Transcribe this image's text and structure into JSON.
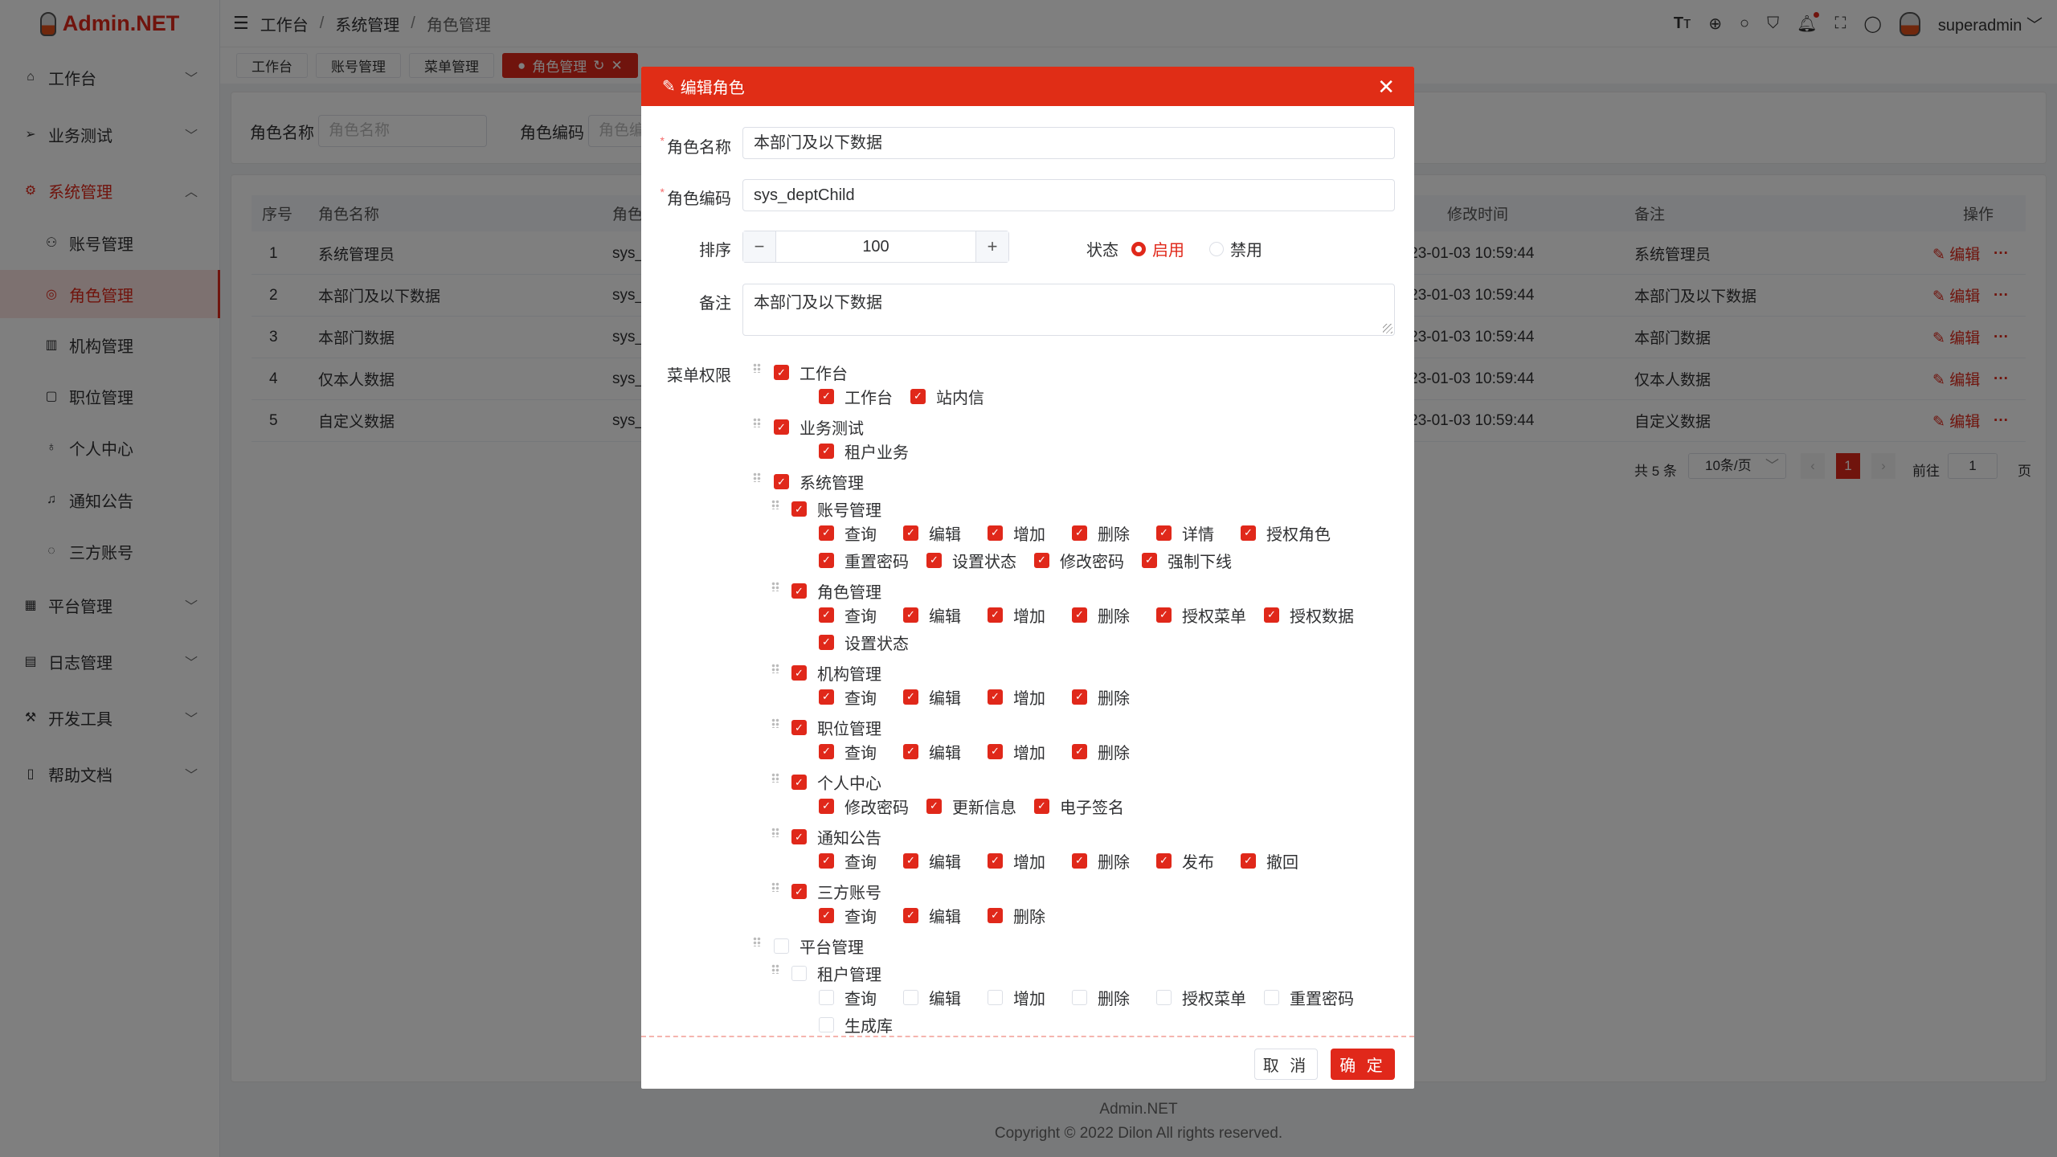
{
  "app": {
    "logo": "Admin.NET",
    "user": "superadmin"
  },
  "breadcrumb": [
    "工作台",
    "系统管理",
    "角色管理"
  ],
  "header_icons": [
    "font-size-icon",
    "language-icon",
    "search-icon",
    "skin-icon",
    "bell-icon",
    "fullscreen-icon",
    "user-icon"
  ],
  "sidebar": [
    {
      "label": "工作台",
      "icon": "home-icon",
      "sub": false,
      "chev": "﹀"
    },
    {
      "label": "业务测试",
      "icon": "send-icon",
      "sub": false,
      "chev": "﹀"
    },
    {
      "label": "系统管理",
      "icon": "gear-icon",
      "sub": false,
      "chev": "︿",
      "open": true
    },
    {
      "label": "账号管理",
      "icon": "user-icon",
      "sub": true
    },
    {
      "label": "角色管理",
      "icon": "role-icon",
      "sub": true,
      "active": true
    },
    {
      "label": "机构管理",
      "icon": "org-icon",
      "sub": true
    },
    {
      "label": "职位管理",
      "icon": "position-icon",
      "sub": true
    },
    {
      "label": "个人中心",
      "icon": "person-icon",
      "sub": true
    },
    {
      "label": "通知公告",
      "icon": "bell-icon",
      "sub": true
    },
    {
      "label": "三方账号",
      "icon": "chat-icon",
      "sub": true
    },
    {
      "label": "平台管理",
      "icon": "grid-icon",
      "sub": false,
      "chev": "﹀"
    },
    {
      "label": "日志管理",
      "icon": "log-icon",
      "sub": false,
      "chev": "﹀"
    },
    {
      "label": "开发工具",
      "icon": "tool-icon",
      "sub": false,
      "chev": "﹀"
    },
    {
      "label": "帮助文档",
      "icon": "book-icon",
      "sub": false,
      "chev": "﹀"
    }
  ],
  "tabs": [
    {
      "label": "工作台"
    },
    {
      "label": "账号管理"
    },
    {
      "label": "菜单管理"
    },
    {
      "label": "角色管理",
      "active": true
    }
  ],
  "search": {
    "name_label": "角色名称",
    "name_placeholder": "角色名称",
    "code_label": "角色编码",
    "code_placeholder": "角色编码"
  },
  "table": {
    "headers": {
      "index": "序号",
      "name": "角色名称",
      "code": "角色编码",
      "modified": "修改时间",
      "remark": "备注",
      "ops": "操作"
    },
    "rows": [
      {
        "index": "1",
        "name": "系统管理员",
        "code": "sys_",
        "modified": "2023-01-03 10:59:44",
        "remark": "系统管理员"
      },
      {
        "index": "2",
        "name": "本部门及以下数据",
        "code": "sys_",
        "modified": "2023-01-03 10:59:44",
        "remark": "本部门及以下数据"
      },
      {
        "index": "3",
        "name": "本部门数据",
        "code": "sys_",
        "modified": "2023-01-03 10:59:44",
        "remark": "本部门数据"
      },
      {
        "index": "4",
        "name": "仅本人数据",
        "code": "sys_",
        "modified": "2023-01-03 10:59:44",
        "remark": "仅本人数据"
      },
      {
        "index": "5",
        "name": "自定义数据",
        "code": "sys_",
        "modified": "2023-01-03 10:59:44",
        "remark": "自定义数据"
      }
    ],
    "edit_label": "编辑",
    "more_label": "···"
  },
  "pagination": {
    "total": "共 5 条",
    "page_size": "10条/页",
    "current": "1",
    "goto_label": "前往",
    "goto_value": "1",
    "page_suffix": "页"
  },
  "footer": {
    "brand": "Admin.NET",
    "copyright": "Copyright © 2022 Dilon All rights reserved."
  },
  "dialog": {
    "title": "编辑角色",
    "name_label": "角色名称",
    "name_value": "本部门及以下数据",
    "code_label": "角色编码",
    "code_value": "sys_deptChild",
    "sort_label": "排序",
    "sort_value": "100",
    "status_label": "状态",
    "status_options": [
      "启用",
      "禁用"
    ],
    "status_selected": "启用",
    "remark_label": "备注",
    "remark_value": "本部门及以下数据",
    "menu_label": "菜单权限",
    "cancel": "取 消",
    "confirm": "确 定",
    "accent": "#e0281a"
  },
  "menu_tree": [
    {
      "label": "工作台",
      "checked": true,
      "leaves": [
        {
          "label": "工作台",
          "checked": true
        },
        {
          "label": "站内信",
          "checked": true
        }
      ]
    },
    {
      "label": "业务测试",
      "checked": true,
      "leaves": [
        {
          "label": "租户业务",
          "checked": true
        }
      ]
    },
    {
      "label": "系统管理",
      "checked": true,
      "children": [
        {
          "label": "账号管理",
          "checked": true,
          "leaves": [
            {
              "label": "查询",
              "checked": true
            },
            {
              "label": "编辑",
              "checked": true
            },
            {
              "label": "增加",
              "checked": true
            },
            {
              "label": "删除",
              "checked": true
            },
            {
              "label": "详情",
              "checked": true
            },
            {
              "label": "授权角色",
              "checked": true
            },
            {
              "label": "重置密码",
              "checked": true
            },
            {
              "label": "设置状态",
              "checked": true
            },
            {
              "label": "修改密码",
              "checked": true
            },
            {
              "label": "强制下线",
              "checked": true
            }
          ]
        },
        {
          "label": "角色管理",
          "checked": true,
          "leaves": [
            {
              "label": "查询",
              "checked": true
            },
            {
              "label": "编辑",
              "checked": true
            },
            {
              "label": "增加",
              "checked": true
            },
            {
              "label": "删除",
              "checked": true
            },
            {
              "label": "授权菜单",
              "checked": true
            },
            {
              "label": "授权数据",
              "checked": true
            },
            {
              "label": "设置状态",
              "checked": true
            }
          ]
        },
        {
          "label": "机构管理",
          "checked": true,
          "leaves": [
            {
              "label": "查询",
              "checked": true
            },
            {
              "label": "编辑",
              "checked": true
            },
            {
              "label": "增加",
              "checked": true
            },
            {
              "label": "删除",
              "checked": true
            }
          ]
        },
        {
          "label": "职位管理",
          "checked": true,
          "leaves": [
            {
              "label": "查询",
              "checked": true
            },
            {
              "label": "编辑",
              "checked": true
            },
            {
              "label": "增加",
              "checked": true
            },
            {
              "label": "删除",
              "checked": true
            }
          ]
        },
        {
          "label": "个人中心",
          "checked": true,
          "leaves": [
            {
              "label": "修改密码",
              "checked": true
            },
            {
              "label": "更新信息",
              "checked": true
            },
            {
              "label": "电子签名",
              "checked": true
            }
          ]
        },
        {
          "label": "通知公告",
          "checked": true,
          "leaves": [
            {
              "label": "查询",
              "checked": true
            },
            {
              "label": "编辑",
              "checked": true
            },
            {
              "label": "增加",
              "checked": true
            },
            {
              "label": "删除",
              "checked": true
            },
            {
              "label": "发布",
              "checked": true
            },
            {
              "label": "撤回",
              "checked": true
            }
          ]
        },
        {
          "label": "三方账号",
          "checked": true,
          "leaves": [
            {
              "label": "查询",
              "checked": true
            },
            {
              "label": "编辑",
              "checked": true
            },
            {
              "label": "删除",
              "checked": true
            }
          ]
        }
      ]
    },
    {
      "label": "平台管理",
      "checked": false,
      "children": [
        {
          "label": "租户管理",
          "checked": false,
          "leaves": [
            {
              "label": "查询",
              "checked": false
            },
            {
              "label": "编辑",
              "checked": false
            },
            {
              "label": "增加",
              "checked": false
            },
            {
              "label": "删除",
              "checked": false
            },
            {
              "label": "授权菜单",
              "checked": false
            },
            {
              "label": "重置密码",
              "checked": false
            },
            {
              "label": "生成库",
              "checked": false
            }
          ]
        }
      ]
    }
  ]
}
